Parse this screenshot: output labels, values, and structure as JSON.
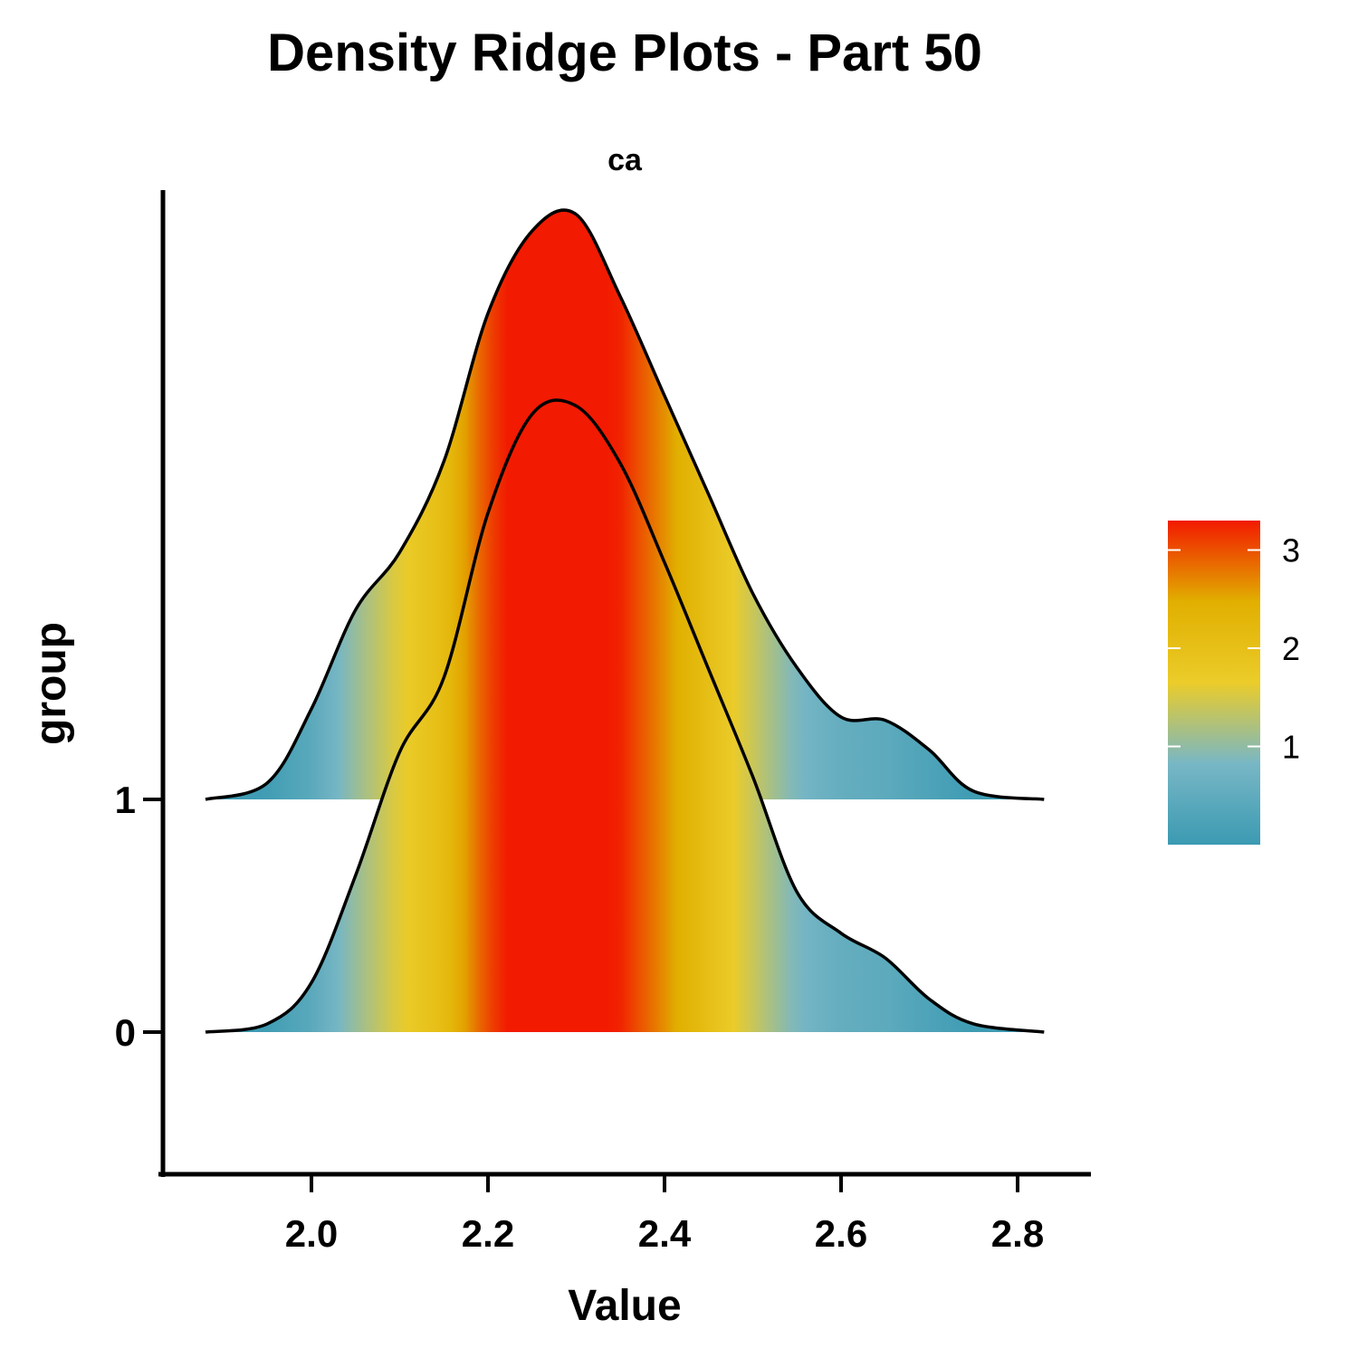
{
  "chart_data": {
    "type": "ridgeline",
    "title": "Density Ridge Plots  - Part 50",
    "facet": "ca",
    "xlabel": "Value",
    "ylabel": "group",
    "xlim": [
      1.87,
      2.83
    ],
    "x_ticks": [
      "2.0",
      "2.2",
      "2.4",
      "2.6",
      "2.8"
    ],
    "x_tick_values": [
      2.0,
      2.2,
      2.4,
      2.6,
      2.8
    ],
    "categories": [
      "0",
      "1"
    ],
    "fill_scale": {
      "breaks": [
        "1",
        "2",
        "3"
      ],
      "break_values": [
        1,
        2,
        3
      ],
      "range": [
        0,
        3.3
      ],
      "colors": [
        "#3b9ab2",
        "#78b7c5",
        "#ebcc2a",
        "#e1af00",
        "#f21a00"
      ]
    },
    "series": [
      {
        "name": "0",
        "x": [
          1.88,
          1.95,
          2.0,
          2.05,
          2.1,
          2.15,
          2.2,
          2.25,
          2.3,
          2.35,
          2.4,
          2.45,
          2.5,
          2.55,
          2.6,
          2.65,
          2.7,
          2.75,
          2.83
        ],
        "density": [
          0.0,
          0.05,
          0.3,
          0.95,
          1.7,
          2.15,
          3.15,
          3.75,
          3.8,
          3.45,
          2.85,
          2.2,
          1.55,
          0.85,
          0.6,
          0.45,
          0.2,
          0.05,
          0.0
        ]
      },
      {
        "name": "1",
        "x": [
          1.88,
          1.95,
          2.0,
          2.05,
          2.1,
          2.15,
          2.2,
          2.25,
          2.3,
          2.35,
          2.4,
          2.45,
          2.5,
          2.55,
          2.6,
          2.65,
          2.7,
          2.75,
          2.83
        ],
        "density": [
          0.0,
          0.1,
          0.55,
          1.15,
          1.5,
          2.05,
          2.95,
          3.45,
          3.55,
          3.05,
          2.45,
          1.85,
          1.25,
          0.8,
          0.5,
          0.48,
          0.3,
          0.05,
          0.0
        ]
      }
    ],
    "grid": false,
    "legend_position": "right"
  }
}
